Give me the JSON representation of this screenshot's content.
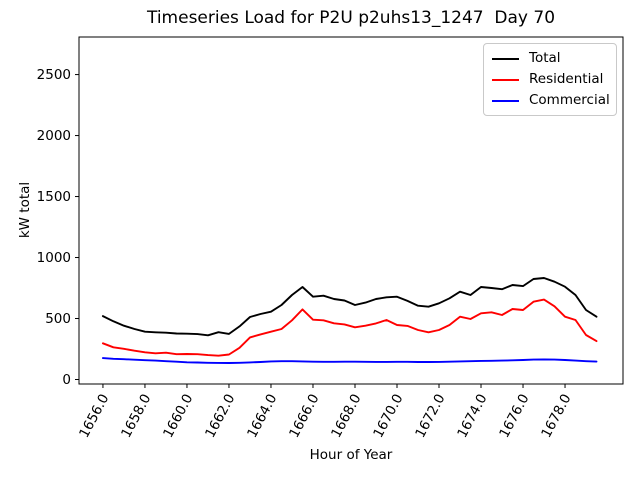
{
  "figure": {
    "title": "Timeseries Load for P2U p2uhs13_1247  Day 70"
  },
  "chart_data": {
    "type": "line",
    "title": "Timeseries Load for P2U p2uhs13_1247  Day 70",
    "xlabel": "Hour of Year",
    "ylabel": "kW total",
    "grid": false,
    "legend_position": "upper right",
    "xlim": [
      1654.86,
      1680.76
    ],
    "ylim": [
      -37,
      2808
    ],
    "x_tick_values": [
      1656,
      1658,
      1660,
      1662,
      1664,
      1666,
      1668,
      1670,
      1672,
      1674,
      1676,
      1678
    ],
    "x_tick_labels": [
      "1656.0",
      "1658.0",
      "1660.0",
      "1662.0",
      "1664.0",
      "1666.0",
      "1668.0",
      "1670.0",
      "1672.0",
      "1674.0",
      "1676.0",
      "1678.0"
    ],
    "y_tick_values": [
      0,
      500,
      1000,
      1500,
      2000,
      2500
    ],
    "y_tick_labels": [
      "0",
      "500",
      "1000",
      "1500",
      "2000",
      "2500"
    ],
    "x": [
      1656.0,
      1656.5,
      1657.0,
      1657.5,
      1658.0,
      1658.5,
      1659.0,
      1659.5,
      1660.0,
      1660.5,
      1661.0,
      1661.5,
      1662.0,
      1662.5,
      1663.0,
      1663.5,
      1664.0,
      1664.5,
      1665.0,
      1665.5,
      1666.0,
      1666.5,
      1667.0,
      1667.5,
      1668.0,
      1668.5,
      1669.0,
      1669.5,
      1670.0,
      1670.5,
      1671.0,
      1671.5,
      1672.0,
      1672.5,
      1673.0,
      1673.5,
      1674.0,
      1674.5,
      1675.0,
      1675.5,
      1676.0,
      1676.5,
      1677.0,
      1677.5,
      1678.0,
      1678.5,
      1679.0,
      1679.5
    ],
    "series": [
      {
        "name": "Total",
        "color": "#000000",
        "values": [
          520,
          477,
          441,
          414,
          392,
          387,
          384,
          377,
          375,
          372,
          362,
          388,
          374,
          435,
          512,
          537,
          556,
          611,
          693,
          758,
          679,
          687,
          660,
          648,
          611,
          630,
          660,
          674,
          679,
          644,
          605,
          597,
          625,
          666,
          720,
          693,
          758,
          750,
          740,
          775,
          766,
          824,
          832,
          802,
          761,
          693,
          570,
          515
        ]
      },
      {
        "name": "Residential",
        "color": "#ff0000",
        "values": [
          297,
          264,
          252,
          236,
          223,
          215,
          220,
          207,
          209,
          207,
          200,
          195,
          205,
          260,
          345,
          370,
          392,
          414,
          485,
          575,
          490,
          485,
          461,
          452,
          428,
          441,
          460,
          488,
          447,
          439,
          406,
          387,
          406,
          447,
          515,
          496,
          543,
          551,
          529,
          578,
          570,
          638,
          655,
          600,
          515,
          488,
          365,
          315
        ]
      },
      {
        "name": "Commercial",
        "color": "#0000ff",
        "values": [
          175,
          170,
          166,
          162,
          158,
          155,
          150,
          146,
          141,
          139,
          137,
          136,
          135,
          137,
          140,
          143,
          148,
          150,
          150,
          148,
          146,
          145,
          145,
          146,
          146,
          145,
          144,
          144,
          145,
          145,
          143,
          143,
          144,
          146,
          148,
          150,
          152,
          153,
          155,
          157,
          160,
          163,
          164,
          163,
          160,
          155,
          150,
          147
        ]
      }
    ]
  }
}
